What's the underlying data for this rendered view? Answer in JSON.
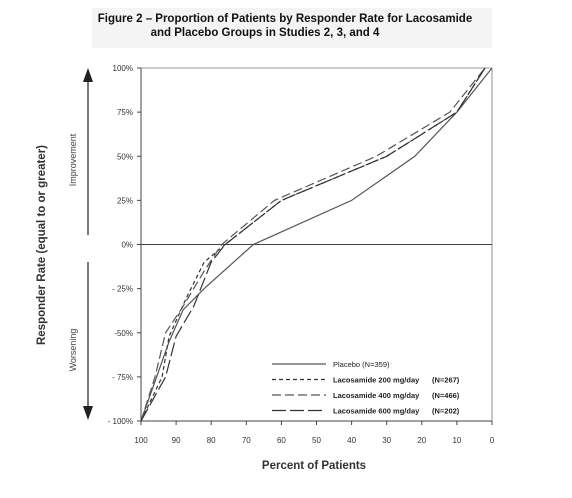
{
  "chart_data": {
    "type": "line",
    "title_line1": "Figure 2 – Proportion of Patients by Responder Rate for Lacosamide",
    "title_line2": "and Placebo Groups in Studies 2, 3, and 4",
    "xlabel": "Percent of Patients",
    "ylabel": "Responder Rate (equal to or greater)",
    "improvement_label": "Improvement",
    "worsening_label": "Worsening",
    "xlim": [
      100,
      0
    ],
    "ylim": [
      -100,
      100
    ],
    "x_ticks": [
      "100",
      "90",
      "80",
      "70",
      "60",
      "50",
      "40",
      "30",
      "20",
      "10",
      "0"
    ],
    "x_tick_values": [
      100,
      90,
      80,
      70,
      60,
      50,
      40,
      30,
      20,
      10,
      0
    ],
    "y_ticks": [
      "100%",
      "75%",
      "50%",
      "25%",
      "0%",
      "- 25%",
      "-50%",
      "- 75%",
      "- 100%"
    ],
    "y_tick_values": [
      100,
      75,
      50,
      25,
      0,
      -25,
      -50,
      -75,
      -100
    ],
    "series": [
      {
        "name": "Placebo (N=359)",
        "style": "solid",
        "color": "#555555",
        "points": [
          [
            100,
            -100
          ],
          [
            92,
            -55
          ],
          [
            88,
            -37
          ],
          [
            82,
            -25
          ],
          [
            68,
            0
          ],
          [
            40,
            25
          ],
          [
            22,
            50
          ],
          [
            10,
            75
          ],
          [
            0,
            100
          ]
        ]
      },
      {
        "name": "Lacosamide 200 mg/day",
        "n_label": "(N=267)",
        "style": "short-dash",
        "color": "#333333",
        "points": [
          [
            100,
            -100
          ],
          [
            94,
            -75
          ],
          [
            92,
            -52
          ],
          [
            87,
            -30
          ],
          [
            82,
            -10
          ],
          [
            76,
            0
          ],
          [
            60,
            25
          ],
          [
            30,
            50
          ],
          [
            10,
            75
          ],
          [
            2,
            100
          ]
        ]
      },
      {
        "name": "Lacosamide 400 mg/day",
        "n_label": "(N=466)",
        "style": "long-dash",
        "color": "#555555",
        "points": [
          [
            100,
            -100
          ],
          [
            96,
            -75
          ],
          [
            93,
            -50
          ],
          [
            88,
            -35
          ],
          [
            82,
            -15
          ],
          [
            77,
            0
          ],
          [
            62,
            25
          ],
          [
            33,
            50
          ],
          [
            12,
            75
          ],
          [
            2,
            100
          ]
        ]
      },
      {
        "name": "Lacosamide 600 mg/day",
        "n_label": "(N=202)",
        "style": "extra-long-dash",
        "color": "#333333",
        "points": [
          [
            100,
            -100
          ],
          [
            93,
            -75
          ],
          [
            90,
            -52
          ],
          [
            85,
            -35
          ],
          [
            80,
            -10
          ],
          [
            76,
            0
          ],
          [
            60,
            25
          ],
          [
            30,
            50
          ],
          [
            10,
            75
          ],
          [
            2,
            100
          ]
        ]
      }
    ],
    "legend_position": "bottom-right",
    "grid": false,
    "zero_line": true
  }
}
